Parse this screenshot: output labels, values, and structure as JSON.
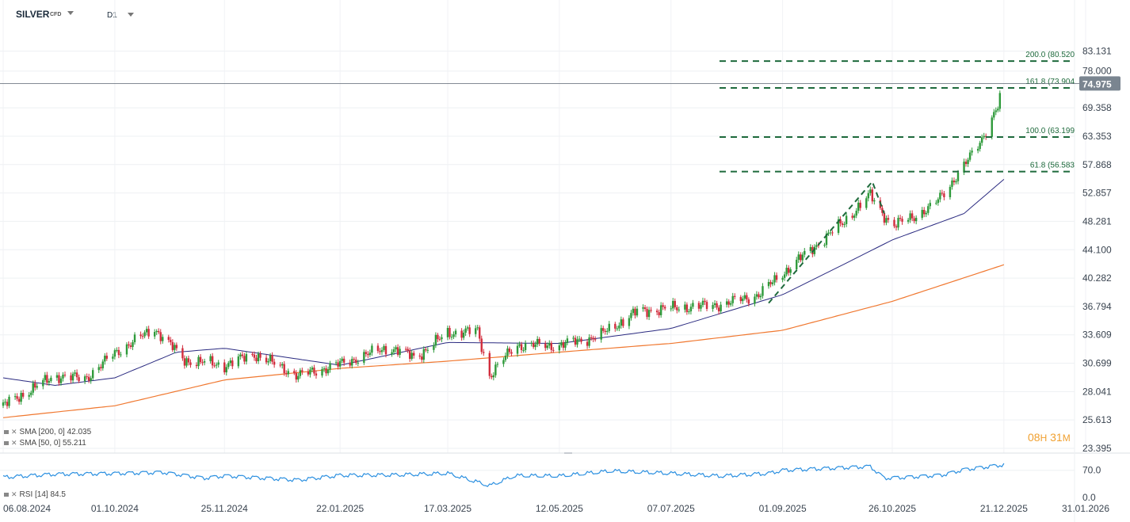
{
  "header": {
    "symbol": "SILVER",
    "instrument_type": "CFD",
    "timeframe": "D1"
  },
  "indicators": {
    "sma200": {
      "label": "SMA [200, 0] 42.035",
      "color": "#f07830"
    },
    "sma50": {
      "label": "SMA [50, 0] 55.211",
      "color": "#2a2a80"
    },
    "rsi": {
      "label": "RSI [14] 84.5",
      "color": "#2a8fe0"
    }
  },
  "countdown": {
    "hours": "08",
    "h_unit": "H",
    "minutes": "31",
    "m_unit": "M"
  },
  "chart_data": {
    "type": "candlestick",
    "title": "SILVER CFD D1",
    "price_scale": "log",
    "ylim": [
      23.395,
      88.0
    ],
    "y_ticks": [
      "83.131",
      "78.000",
      "69.358",
      "63.353",
      "57.868",
      "52.857",
      "48.281",
      "44.100",
      "40.282",
      "36.794",
      "33.609",
      "30.699",
      "28.041",
      "25.613",
      "23.395"
    ],
    "x_ticks": [
      "06.08.2024",
      "01.10.2024",
      "25.11.2024",
      "22.01.2025",
      "17.03.2025",
      "12.05.2025",
      "07.07.2025",
      "01.09.2025",
      "26.10.2025",
      "21.12.2025",
      "31.01.2026"
    ],
    "last_price": "74.975",
    "colors": {
      "up": "#2e9a3a",
      "down": "#d22d3d",
      "sma50": "#2a2a80",
      "sma200": "#f07830",
      "fib": "#1e6a3c",
      "rsi": "#2a8fe0",
      "last": "#7a8590"
    },
    "price_path": [
      [
        "06.08.2024",
        26.8
      ],
      [
        "01.09.2024",
        29.5
      ],
      [
        "16.09.2024",
        29.2
      ],
      [
        "01.10.2024",
        31.7
      ],
      [
        "21.10.2024",
        34.3
      ],
      [
        "05.11.2024",
        31.0
      ],
      [
        "25.11.2024",
        30.5
      ],
      [
        "10.12.2024",
        31.6
      ],
      [
        "01.01.2025",
        29.5
      ],
      [
        "22.01.2025",
        30.6
      ],
      [
        "15.02.2025",
        32.3
      ],
      [
        "01.03.2025",
        31.3
      ],
      [
        "17.03.2025",
        33.8
      ],
      [
        "01.04.2025",
        34.0
      ],
      [
        "07.04.2025",
        29.5
      ],
      [
        "20.04.2025",
        32.5
      ],
      [
        "12.05.2025",
        32.5
      ],
      [
        "01.06.2025",
        33.5
      ],
      [
        "20.06.2025",
        36.2
      ],
      [
        "07.07.2025",
        36.6
      ],
      [
        "01.08.2025",
        37.0
      ],
      [
        "20.08.2025",
        38.2
      ],
      [
        "01.09.2025",
        40.9
      ],
      [
        "01.10.2025",
        48.0
      ],
      [
        "15.10.2025",
        52.5
      ],
      [
        "26.10.2025",
        47.5
      ],
      [
        "15.11.2025",
        50.5
      ],
      [
        "01.12.2025",
        57.5
      ],
      [
        "10.12.2025",
        63.0
      ],
      [
        "18.12.2025",
        69.5
      ],
      [
        "21.12.2025",
        74.975
      ]
    ],
    "sma50_path": [
      [
        "06.08.2024",
        29.3
      ],
      [
        "01.09.2024",
        28.6
      ],
      [
        "01.10.2024",
        29.3
      ],
      [
        "01.11.2024",
        31.8
      ],
      [
        "25.11.2024",
        32.2
      ],
      [
        "22.01.2025",
        30.5
      ],
      [
        "17.03.2025",
        32.8
      ],
      [
        "12.05.2025",
        32.7
      ],
      [
        "07.07.2025",
        34.3
      ],
      [
        "01.09.2025",
        38.2
      ],
      [
        "01.10.2025",
        42.0
      ],
      [
        "26.10.2025",
        45.5
      ],
      [
        "01.12.2025",
        49.5
      ],
      [
        "21.12.2025",
        55.211
      ]
    ],
    "sma200_path": [
      [
        "06.08.2024",
        25.8
      ],
      [
        "01.10.2024",
        26.8
      ],
      [
        "25.11.2024",
        29.1
      ],
      [
        "22.01.2025",
        30.2
      ],
      [
        "17.03.2025",
        30.9
      ],
      [
        "12.05.2025",
        31.8
      ],
      [
        "07.07.2025",
        32.7
      ],
      [
        "01.09.2025",
        34.1
      ],
      [
        "26.10.2025",
        37.4
      ],
      [
        "21.12.2025",
        42.035
      ]
    ],
    "fibonacci": [
      {
        "level": "200.0",
        "price": "80.520",
        "label": "200.0 (80.520"
      },
      {
        "level": "161.8",
        "price": "73.904",
        "label": "161.8 (73.904"
      },
      {
        "level": "100.0",
        "price": "63.199",
        "label": "100.0 (63.199"
      },
      {
        "level": "61.8",
        "price": "56.583",
        "label": "61.8 (56.583"
      }
    ],
    "trend_line": [
      [
        "25.08.2025",
        37.2
      ],
      [
        "16.10.2025",
        54.8
      ],
      [
        "22.10.2025",
        49.5
      ]
    ],
    "rsi": {
      "ylim": [
        0,
        100
      ],
      "y_ticks": [
        "70.0",
        "0.0"
      ],
      "last": 84.5,
      "path": [
        [
          "06.08.2024",
          52
        ],
        [
          "01.09.2024",
          60
        ],
        [
          "01.10.2024",
          62
        ],
        [
          "25.10.2024",
          65
        ],
        [
          "15.11.2024",
          50
        ],
        [
          "25.11.2024",
          56
        ],
        [
          "01.01.2025",
          45
        ],
        [
          "22.01.2025",
          57
        ],
        [
          "20.02.2025",
          58
        ],
        [
          "17.03.2025",
          62
        ],
        [
          "07.04.2025",
          30
        ],
        [
          "20.04.2025",
          56
        ],
        [
          "12.05.2025",
          55
        ],
        [
          "07.06.2025",
          68
        ],
        [
          "07.07.2025",
          62
        ],
        [
          "01.08.2025",
          55
        ],
        [
          "25.08.2025",
          62
        ],
        [
          "01.09.2025",
          70
        ],
        [
          "15.10.2025",
          80
        ],
        [
          "22.10.2025",
          50
        ],
        [
          "01.11.2025",
          52
        ],
        [
          "20.11.2025",
          58
        ],
        [
          "01.12.2025",
          72
        ],
        [
          "21.12.2025",
          84.5
        ]
      ]
    }
  }
}
